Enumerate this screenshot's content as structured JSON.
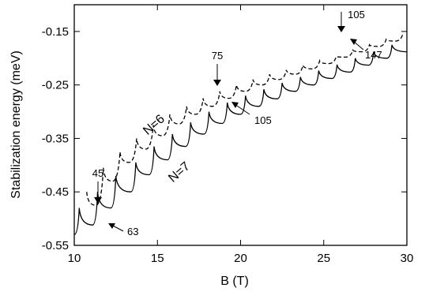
{
  "chart_data": {
    "type": "line",
    "xlabel": "B  (T)",
    "ylabel": "Stabilization energy (meV)",
    "xlim": [
      10,
      30
    ],
    "ylim": [
      -0.55,
      -0.1
    ],
    "x_ticks": [
      "10",
      "15",
      "20",
      "25",
      "30"
    ],
    "y_ticks": [
      "-0.55",
      "-0.45",
      "-0.35",
      "-0.25",
      "-0.15"
    ],
    "grid": false,
    "legend": "none",
    "series": [
      {
        "name": "N=6",
        "style": "dashed",
        "cusp_peaks": [
          [
            10.75,
            -0.45
          ],
          [
            11.75,
            -0.405
          ],
          [
            12.75,
            -0.375
          ],
          [
            13.75,
            -0.35
          ],
          [
            14.75,
            -0.325
          ],
          [
            15.75,
            -0.305
          ],
          [
            16.75,
            -0.29
          ],
          [
            17.75,
            -0.275
          ],
          [
            18.75,
            -0.262
          ],
          [
            19.75,
            -0.25
          ],
          [
            20.75,
            -0.24
          ],
          [
            21.75,
            -0.23
          ],
          [
            22.75,
            -0.222
          ],
          [
            23.75,
            -0.213
          ],
          [
            24.75,
            -0.205
          ],
          [
            25.75,
            -0.197
          ],
          [
            26.75,
            -0.185
          ],
          [
            27.75,
            -0.175
          ],
          [
            28.75,
            -0.165
          ],
          [
            29.75,
            -0.155
          ]
        ],
        "troughs": [
          [
            11.3,
            -0.475
          ],
          [
            12.3,
            -0.43
          ],
          [
            13.3,
            -0.395
          ],
          [
            14.3,
            -0.37
          ],
          [
            15.3,
            -0.345
          ],
          [
            16.3,
            -0.323
          ],
          [
            17.3,
            -0.305
          ],
          [
            18.3,
            -0.29
          ],
          [
            19.3,
            -0.275
          ],
          [
            20.3,
            -0.262
          ],
          [
            21.3,
            -0.25
          ],
          [
            22.3,
            -0.24
          ],
          [
            23.3,
            -0.23
          ],
          [
            24.3,
            -0.22
          ],
          [
            25.3,
            -0.21
          ],
          [
            26.3,
            -0.198
          ],
          [
            27.3,
            -0.188
          ],
          [
            28.3,
            -0.178
          ],
          [
            29.3,
            -0.168
          ]
        ]
      },
      {
        "name": "N=7",
        "style": "solid",
        "cusp_peaks": [
          [
            10.3,
            -0.48
          ],
          [
            11.4,
            -0.45
          ],
          [
            12.5,
            -0.42
          ],
          [
            13.7,
            -0.395
          ],
          [
            14.8,
            -0.365
          ],
          [
            15.9,
            -0.342
          ],
          [
            17.0,
            -0.32
          ],
          [
            18.1,
            -0.3
          ],
          [
            19.2,
            -0.283
          ],
          [
            20.3,
            -0.27
          ],
          [
            21.4,
            -0.258
          ],
          [
            22.5,
            -0.246
          ],
          [
            23.6,
            -0.235
          ],
          [
            24.7,
            -0.223
          ],
          [
            25.8,
            -0.212
          ],
          [
            26.9,
            -0.2
          ],
          [
            28.0,
            -0.188
          ],
          [
            29.1,
            -0.175
          ]
        ],
        "troughs": [
          [
            10.0,
            -0.53
          ],
          [
            11.1,
            -0.512
          ],
          [
            12.2,
            -0.48
          ],
          [
            13.4,
            -0.45
          ],
          [
            14.5,
            -0.418
          ],
          [
            15.6,
            -0.39
          ],
          [
            16.7,
            -0.365
          ],
          [
            17.8,
            -0.342
          ],
          [
            18.9,
            -0.322
          ],
          [
            20.0,
            -0.305
          ],
          [
            21.1,
            -0.29
          ],
          [
            22.2,
            -0.276
          ],
          [
            23.3,
            -0.262
          ],
          [
            24.4,
            -0.25
          ],
          [
            25.5,
            -0.238
          ],
          [
            26.6,
            -0.226
          ],
          [
            27.7,
            -0.213
          ],
          [
            28.8,
            -0.2
          ],
          [
            30.0,
            -0.188
          ]
        ]
      }
    ],
    "curve_labels": [
      "N=6",
      "N=7"
    ],
    "annotations": [
      {
        "text": "45",
        "x": 10.6,
        "y": -0.44,
        "arrow": "down"
      },
      {
        "text": "63",
        "x": 11.2,
        "y": -0.51,
        "arrow": "up-left"
      },
      {
        "text": "75",
        "x": 17.8,
        "y": -0.28,
        "arrow": "down"
      },
      {
        "text": "105",
        "x": 19.2,
        "y": -0.27,
        "arrow": "up-left"
      },
      {
        "text": "105",
        "x": 25.8,
        "y": -0.17,
        "arrow": "down"
      },
      {
        "text": "147",
        "x": 26.8,
        "y": -0.17,
        "arrow": "up-left"
      }
    ]
  }
}
